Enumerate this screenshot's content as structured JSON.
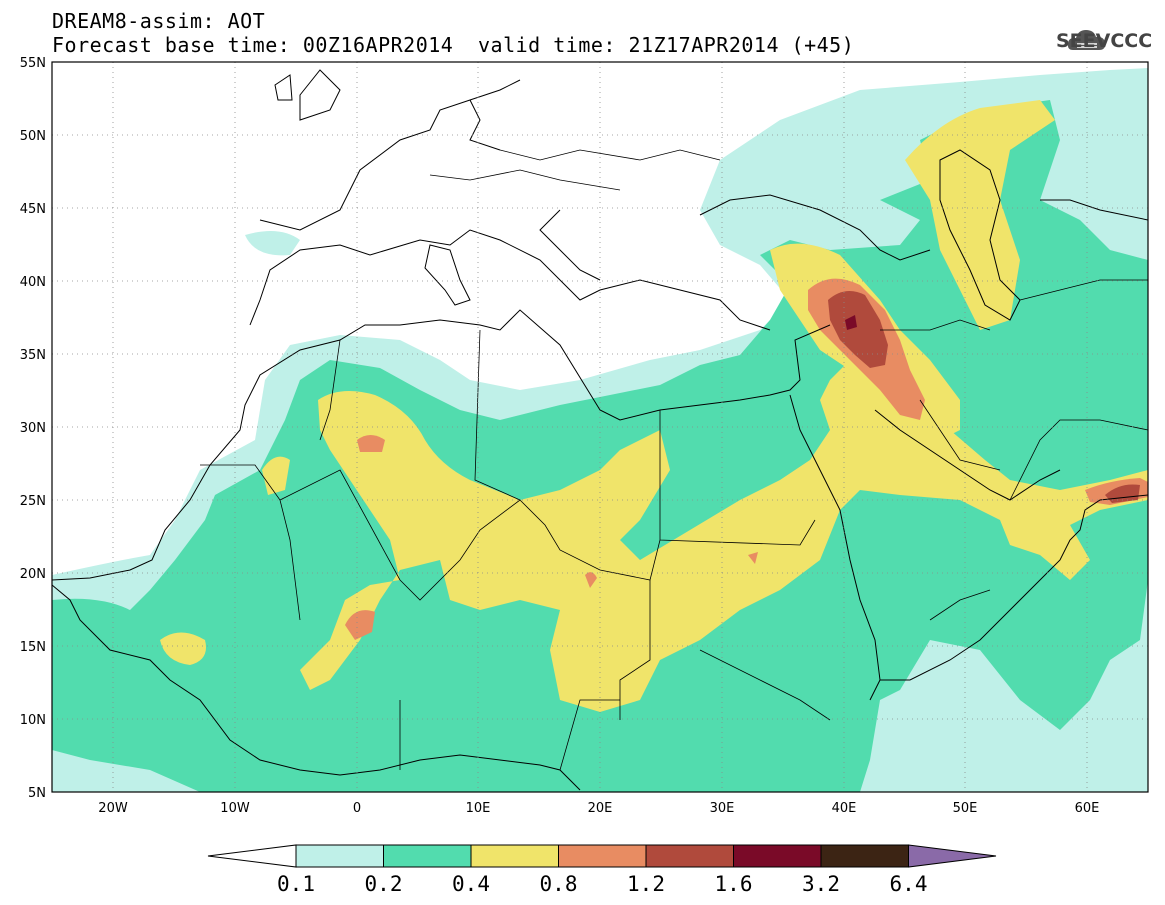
{
  "header": {
    "title": "DREAM8-assim: AOT",
    "base_time": "Forecast base time: 00Z16APR2014",
    "valid_time": "valid time: 21Z17APR2014 (+45)"
  },
  "logo": {
    "text": "SEEVCCC",
    "icon": "cloud-logo-icon"
  },
  "map": {
    "lon_range": [
      -25,
      65
    ],
    "lat_range": [
      5,
      55
    ],
    "lat_ticks": [
      "5N",
      "10N",
      "15N",
      "20N",
      "25N",
      "30N",
      "35N",
      "40N",
      "45N",
      "50N",
      "55N"
    ],
    "lon_ticks": [
      "20W",
      "10W",
      "0",
      "10E",
      "20E",
      "30E",
      "40E",
      "50E",
      "60E"
    ],
    "colors": {
      "c01": "#bff0e8",
      "c02": "#52dcae",
      "c04": "#f0e46a",
      "c08": "#e88c62",
      "c12": "#b04a3c",
      "c16": "#7a0a28",
      "c32": "#3c2414",
      "c64": "#8a6aa8"
    }
  },
  "colorbar": {
    "labels": [
      "0.1",
      "0.2",
      "0.4",
      "0.8",
      "1.2",
      "1.6",
      "3.2",
      "6.4"
    ],
    "colors": [
      "#ffffff",
      "#bff0e8",
      "#52dcae",
      "#f0e46a",
      "#e88c62",
      "#b04a3c",
      "#7a0a28",
      "#3c2414",
      "#8a6aa8"
    ]
  }
}
